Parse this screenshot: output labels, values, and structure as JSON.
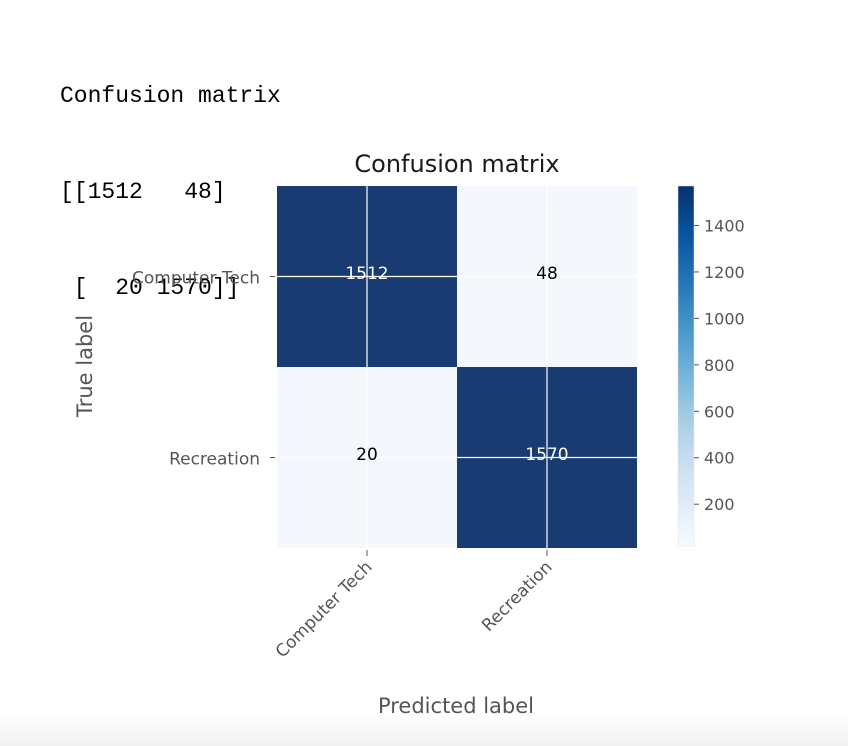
{
  "console": {
    "lines": [
      "Confusion matrix",
      "[[1512   48]",
      " [  20 1570]]"
    ]
  },
  "chart_data": {
    "type": "heatmap",
    "title": "Confusion matrix",
    "xlabel": "Predicted label",
    "ylabel": "True label",
    "x_categories": [
      "Computer Tech",
      "Recreation"
    ],
    "y_categories": [
      "Computer Tech",
      "Recreation"
    ],
    "matrix": [
      [
        1512,
        48
      ],
      [
        20,
        1570
      ]
    ],
    "colormap": "Blues",
    "colors": {
      "low": "#f7fbff",
      "high": "#08306b",
      "dark_cell": "#1a3a72",
      "light_cell": "#f4f8fd"
    },
    "colorbar": {
      "ticks": [
        200,
        400,
        600,
        800,
        1000,
        1200,
        1400
      ],
      "range": [
        20,
        1570
      ]
    },
    "grid": true
  }
}
